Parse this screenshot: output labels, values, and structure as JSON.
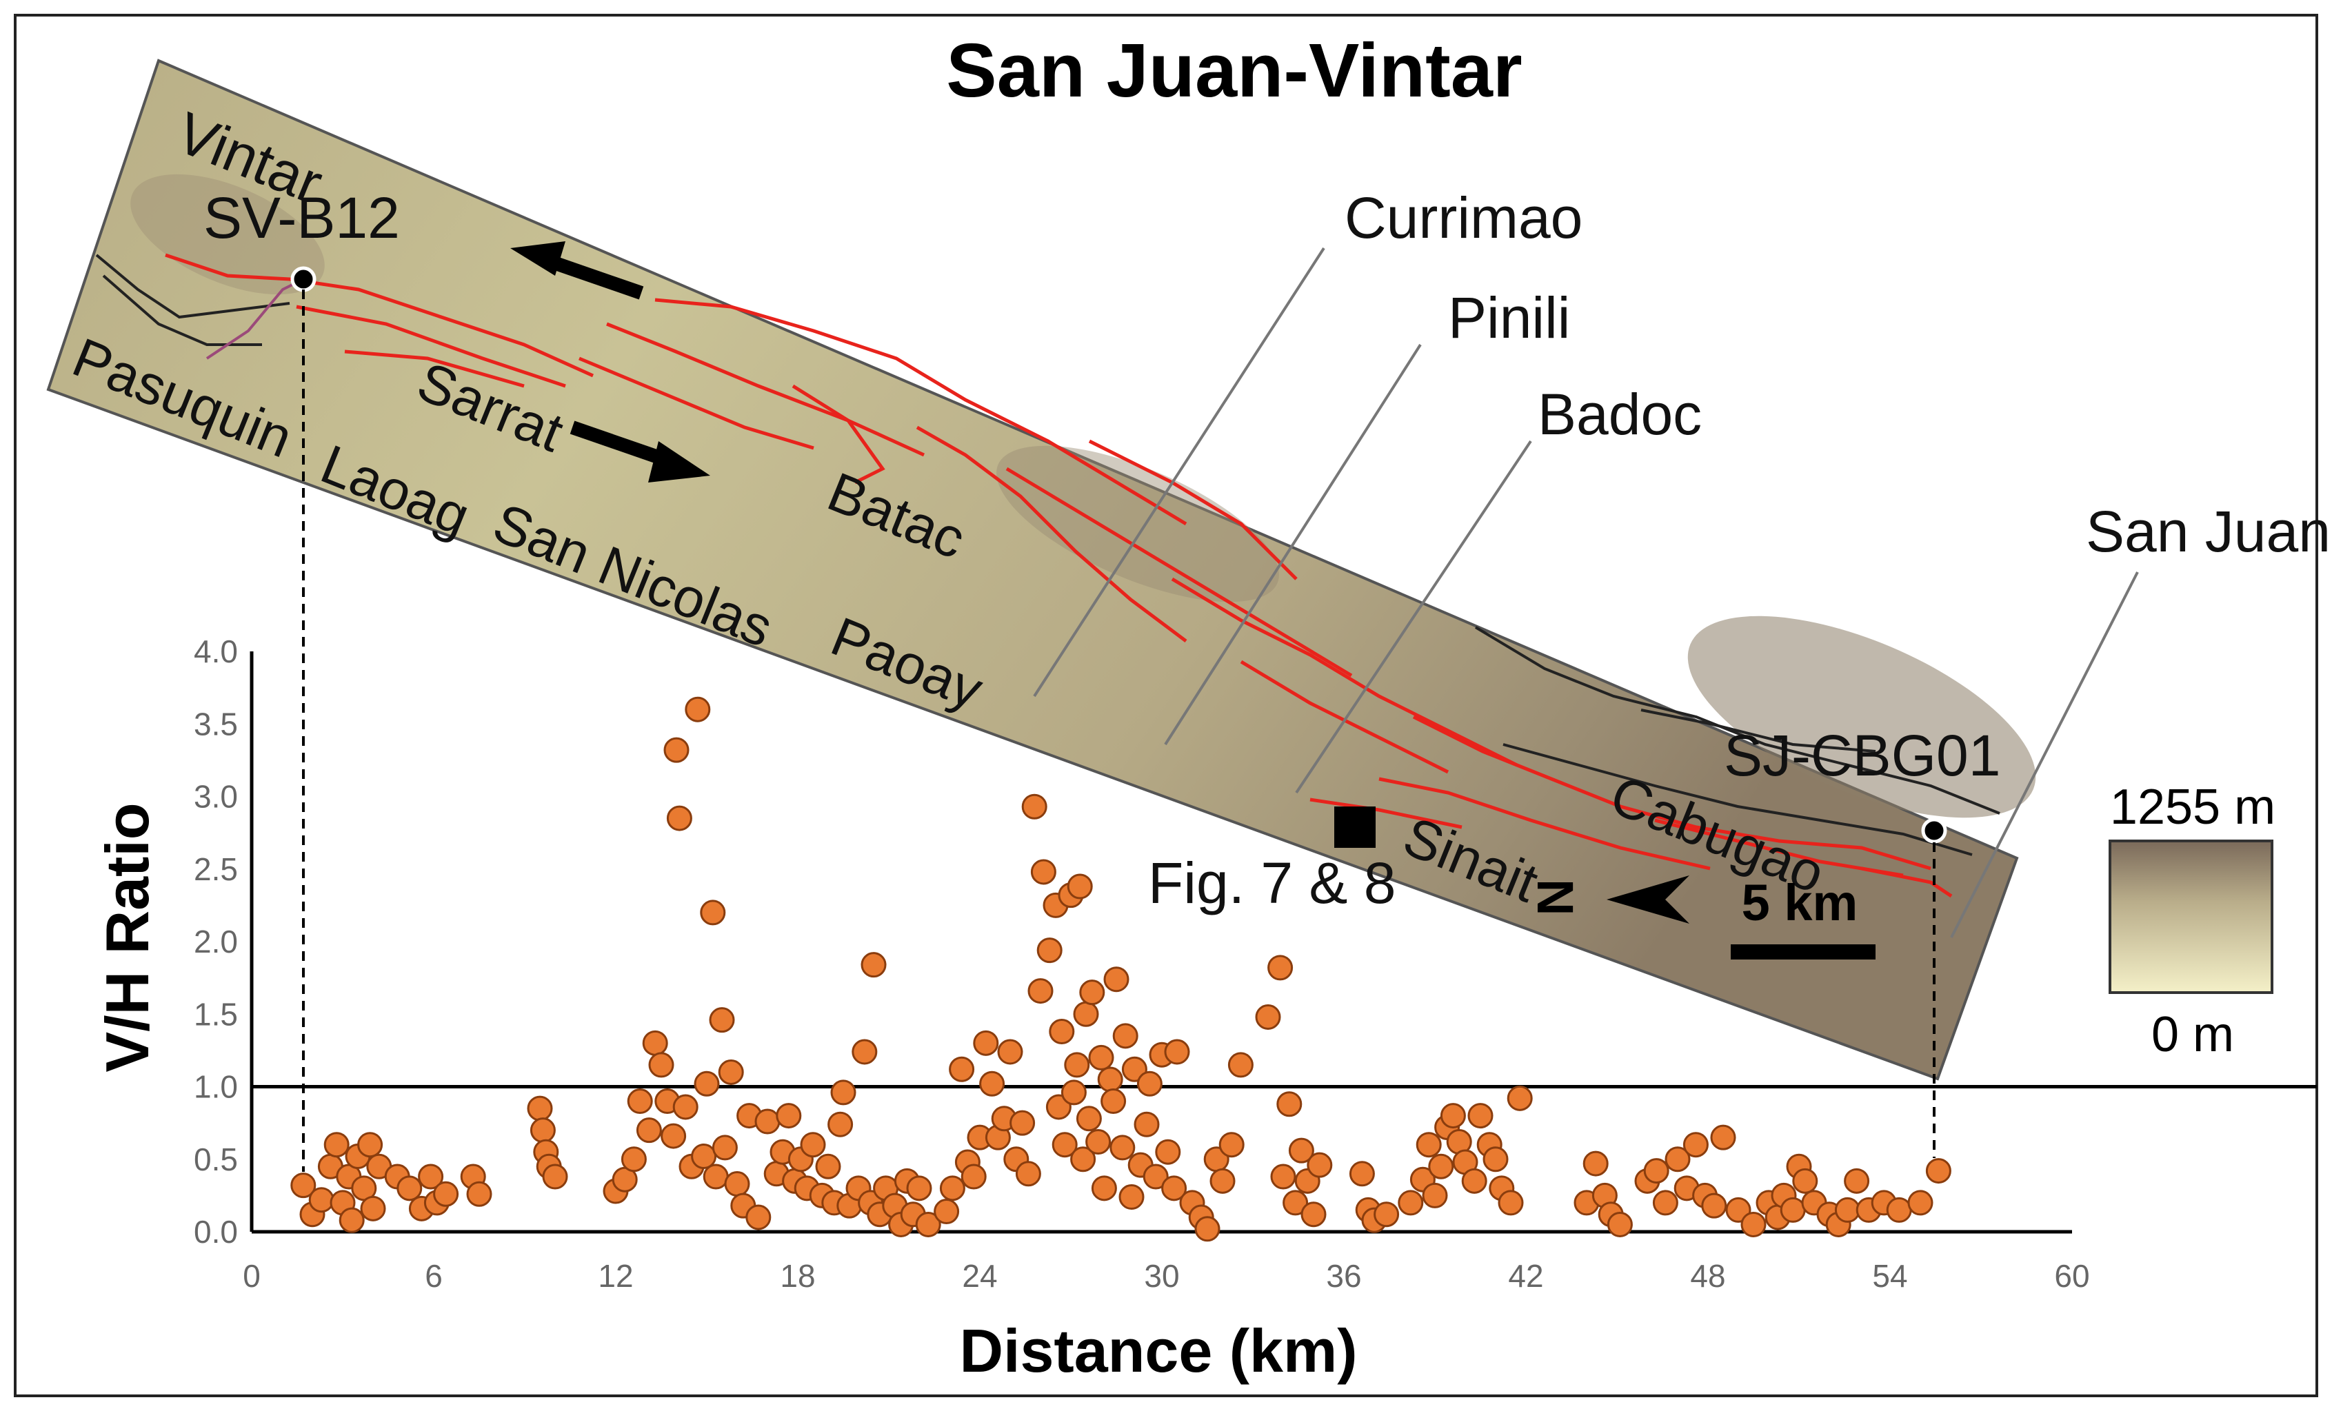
{
  "figure": {
    "title": "San Juan-Vintar",
    "map_labels": {
      "vintar": "Vintar",
      "sv_b12": "SV-B12",
      "currimao": "Currimao",
      "pinili": "Pinili",
      "badoc": "Badoc",
      "san_juan": "San Juan",
      "pasuquin": "Pasuquin",
      "laoag": "Laoag",
      "san_nicolas": "San Nicolas",
      "paoay": "Paoay",
      "sarrat": "Sarrat",
      "batac": "Batac",
      "sj_cbg01": "SJ-CBG01",
      "cabugao": "Cabugao",
      "sinait": "Sinait",
      "fig_ref": "Fig. 7 & 8",
      "north": "N",
      "scale": "5 km"
    },
    "elevation_legend": {
      "max": "1255 m",
      "min": "0 m"
    },
    "colors": {
      "fault": "#e8231c",
      "dot": "#e97a30",
      "dot_edge": "#8a3d0e",
      "ratio_line": "#000000"
    }
  },
  "chart_data": {
    "type": "scatter",
    "title": "",
    "xlabel": "Distance (km)",
    "ylabel": "V/H Ratio",
    "xlim": [
      0,
      60
    ],
    "ylim": [
      0,
      4
    ],
    "xticks": [
      "0",
      "6",
      "12",
      "18",
      "24",
      "30",
      "36",
      "42",
      "48",
      "54",
      "60"
    ],
    "yticks": [
      "0.0",
      "0.5",
      "1.0",
      "1.5",
      "2.0",
      "2.5",
      "3.0",
      "3.5",
      "4.0"
    ],
    "reference_line_y": 1.0,
    "series": [
      {
        "points": [
          [
            1.7,
            0.32
          ],
          [
            2.0,
            0.12
          ],
          [
            2.3,
            0.22
          ],
          [
            2.6,
            0.45
          ],
          [
            2.8,
            0.6
          ],
          [
            3.0,
            0.2
          ],
          [
            3.2,
            0.38
          ],
          [
            3.3,
            0.08
          ],
          [
            3.5,
            0.52
          ],
          [
            3.7,
            0.3
          ],
          [
            3.9,
            0.6
          ],
          [
            4.0,
            0.16
          ],
          [
            4.2,
            0.45
          ],
          [
            4.8,
            0.38
          ],
          [
            5.2,
            0.3
          ],
          [
            5.6,
            0.16
          ],
          [
            5.9,
            0.38
          ],
          [
            6.1,
            0.2
          ],
          [
            6.4,
            0.26
          ],
          [
            7.3,
            0.38
          ],
          [
            7.5,
            0.26
          ],
          [
            9.5,
            0.85
          ],
          [
            9.6,
            0.7
          ],
          [
            9.7,
            0.55
          ],
          [
            9.8,
            0.45
          ],
          [
            10.0,
            0.38
          ],
          [
            12.0,
            0.28
          ],
          [
            12.3,
            0.36
          ],
          [
            12.6,
            0.5
          ],
          [
            12.8,
            0.9
          ],
          [
            13.1,
            0.7
          ],
          [
            13.3,
            1.3
          ],
          [
            13.5,
            1.15
          ],
          [
            13.7,
            0.9
          ],
          [
            13.9,
            0.66
          ],
          [
            14.0,
            3.32
          ],
          [
            14.1,
            2.85
          ],
          [
            14.3,
            0.86
          ],
          [
            14.5,
            0.45
          ],
          [
            14.7,
            3.6
          ],
          [
            14.9,
            0.52
          ],
          [
            15.0,
            1.02
          ],
          [
            15.2,
            2.2
          ],
          [
            15.3,
            0.38
          ],
          [
            15.5,
            1.46
          ],
          [
            15.6,
            0.58
          ],
          [
            15.8,
            1.1
          ],
          [
            16.0,
            0.33
          ],
          [
            16.2,
            0.18
          ],
          [
            16.4,
            0.8
          ],
          [
            16.7,
            0.1
          ],
          [
            17.0,
            0.76
          ],
          [
            17.3,
            0.4
          ],
          [
            17.5,
            0.55
          ],
          [
            17.7,
            0.8
          ],
          [
            17.9,
            0.35
          ],
          [
            18.1,
            0.5
          ],
          [
            18.3,
            0.3
          ],
          [
            18.5,
            0.6
          ],
          [
            18.8,
            0.25
          ],
          [
            19.0,
            0.45
          ],
          [
            19.2,
            0.2
          ],
          [
            19.4,
            0.74
          ],
          [
            19.5,
            0.96
          ],
          [
            19.7,
            0.18
          ],
          [
            20.0,
            0.3
          ],
          [
            20.2,
            1.24
          ],
          [
            20.4,
            0.2
          ],
          [
            20.5,
            1.84
          ],
          [
            20.7,
            0.12
          ],
          [
            20.9,
            0.3
          ],
          [
            21.2,
            0.18
          ],
          [
            21.4,
            0.05
          ],
          [
            21.6,
            0.35
          ],
          [
            21.8,
            0.12
          ],
          [
            22.0,
            0.3
          ],
          [
            22.3,
            0.05
          ],
          [
            22.9,
            0.14
          ],
          [
            23.1,
            0.3
          ],
          [
            23.4,
            1.12
          ],
          [
            23.6,
            0.48
          ],
          [
            23.8,
            0.38
          ],
          [
            24.0,
            0.65
          ],
          [
            24.2,
            1.3
          ],
          [
            24.4,
            1.02
          ],
          [
            24.6,
            0.65
          ],
          [
            24.8,
            0.78
          ],
          [
            25.0,
            1.24
          ],
          [
            25.2,
            0.5
          ],
          [
            25.4,
            0.75
          ],
          [
            25.6,
            0.4
          ],
          [
            25.8,
            2.93
          ],
          [
            26.0,
            1.66
          ],
          [
            26.1,
            2.48
          ],
          [
            26.3,
            1.94
          ],
          [
            26.5,
            2.25
          ],
          [
            26.6,
            0.86
          ],
          [
            26.7,
            1.38
          ],
          [
            26.8,
            0.6
          ],
          [
            27.0,
            2.32
          ],
          [
            27.1,
            0.96
          ],
          [
            27.2,
            1.15
          ],
          [
            27.3,
            2.38
          ],
          [
            27.4,
            0.5
          ],
          [
            27.5,
            1.5
          ],
          [
            27.6,
            0.78
          ],
          [
            27.7,
            1.65
          ],
          [
            27.9,
            0.62
          ],
          [
            28.0,
            1.2
          ],
          [
            28.1,
            0.3
          ],
          [
            28.3,
            1.05
          ],
          [
            28.4,
            0.9
          ],
          [
            28.5,
            1.74
          ],
          [
            28.7,
            0.58
          ],
          [
            28.8,
            1.35
          ],
          [
            29.0,
            0.24
          ],
          [
            29.1,
            1.12
          ],
          [
            29.3,
            0.46
          ],
          [
            29.5,
            0.74
          ],
          [
            29.6,
            1.02
          ],
          [
            29.8,
            0.38
          ],
          [
            30.0,
            1.22
          ],
          [
            30.2,
            0.55
          ],
          [
            30.4,
            0.3
          ],
          [
            30.5,
            1.24
          ],
          [
            31.0,
            0.2
          ],
          [
            31.3,
            0.1
          ],
          [
            31.5,
            0.02
          ],
          [
            31.8,
            0.5
          ],
          [
            32.0,
            0.35
          ],
          [
            32.3,
            0.6
          ],
          [
            32.6,
            1.15
          ],
          [
            33.5,
            1.48
          ],
          [
            33.9,
            1.82
          ],
          [
            34.0,
            0.38
          ],
          [
            34.2,
            0.88
          ],
          [
            34.4,
            0.2
          ],
          [
            34.6,
            0.56
          ],
          [
            34.8,
            0.35
          ],
          [
            35.0,
            0.12
          ],
          [
            35.2,
            0.46
          ],
          [
            36.6,
            0.4
          ],
          [
            36.8,
            0.15
          ],
          [
            37.0,
            0.08
          ],
          [
            37.4,
            0.12
          ],
          [
            38.2,
            0.2
          ],
          [
            38.6,
            0.36
          ],
          [
            38.8,
            0.6
          ],
          [
            39.0,
            0.25
          ],
          [
            39.2,
            0.45
          ],
          [
            39.4,
            0.72
          ],
          [
            39.6,
            0.8
          ],
          [
            39.8,
            0.62
          ],
          [
            40.0,
            0.48
          ],
          [
            40.3,
            0.35
          ],
          [
            40.5,
            0.8
          ],
          [
            40.8,
            0.6
          ],
          [
            41.0,
            0.5
          ],
          [
            41.2,
            0.3
          ],
          [
            41.5,
            0.2
          ],
          [
            41.8,
            0.92
          ],
          [
            44.0,
            0.2
          ],
          [
            44.3,
            0.47
          ],
          [
            44.6,
            0.25
          ],
          [
            44.8,
            0.12
          ],
          [
            45.1,
            0.05
          ],
          [
            46.0,
            0.35
          ],
          [
            46.3,
            0.42
          ],
          [
            46.6,
            0.2
          ],
          [
            47.0,
            0.5
          ],
          [
            47.3,
            0.3
          ],
          [
            47.6,
            0.6
          ],
          [
            47.9,
            0.25
          ],
          [
            48.2,
            0.18
          ],
          [
            48.5,
            0.65
          ],
          [
            49.0,
            0.15
          ],
          [
            49.5,
            0.05
          ],
          [
            50.0,
            0.2
          ],
          [
            50.3,
            0.1
          ],
          [
            50.5,
            0.25
          ],
          [
            50.8,
            0.15
          ],
          [
            51.0,
            0.45
          ],
          [
            51.2,
            0.35
          ],
          [
            51.5,
            0.2
          ],
          [
            52.0,
            0.12
          ],
          [
            52.3,
            0.05
          ],
          [
            52.6,
            0.15
          ],
          [
            52.9,
            0.35
          ],
          [
            53.3,
            0.15
          ],
          [
            53.8,
            0.2
          ],
          [
            54.3,
            0.15
          ],
          [
            55.0,
            0.2
          ],
          [
            55.6,
            0.42
          ]
        ]
      }
    ]
  }
}
